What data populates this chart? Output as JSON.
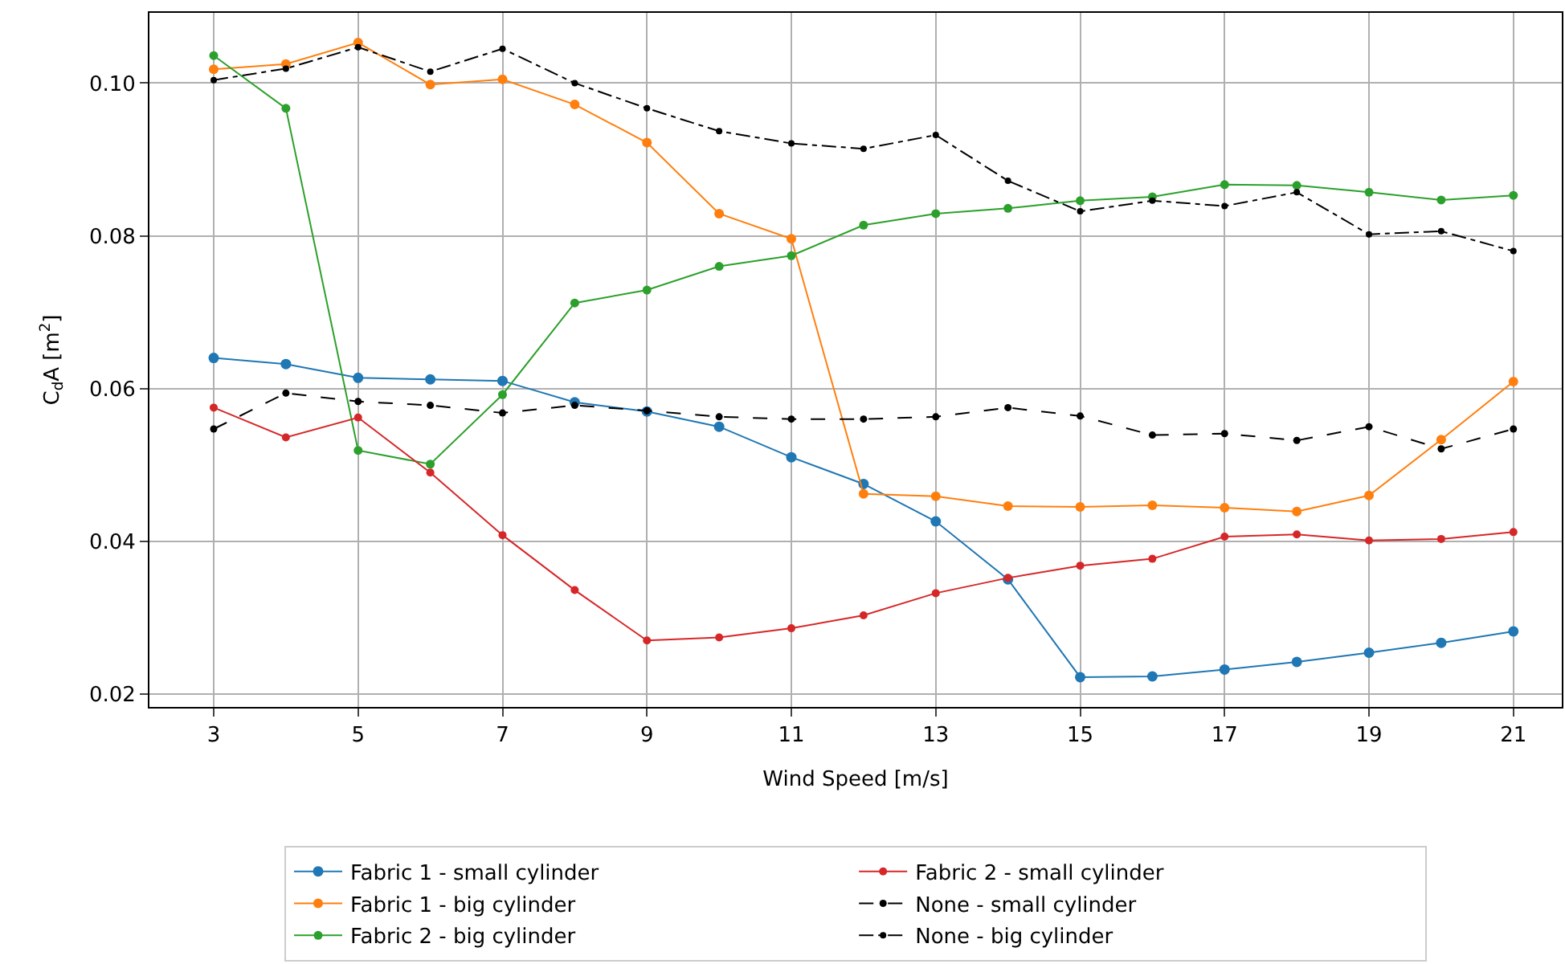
{
  "chart_data": {
    "type": "line",
    "xlabel": "Wind Speed [m/s]",
    "ylabel": "C$_{d}$A [m$^{2}$]",
    "x": [
      3,
      4,
      5,
      6,
      7,
      8,
      9,
      10,
      11,
      12,
      13,
      14,
      15,
      16,
      17,
      18,
      19,
      20,
      21
    ],
    "xlim": [
      2.11,
      21.67
    ],
    "xticks": [
      3,
      5,
      7,
      9,
      11,
      13,
      15,
      17,
      19,
      21
    ],
    "ylim": [
      0.0183,
      0.1092
    ],
    "yticks": [
      {
        "value": 0.02,
        "label": "0.02"
      },
      {
        "value": 0.04,
        "label": "0.04"
      },
      {
        "value": 0.06,
        "label": "0.06"
      },
      {
        "value": 0.08,
        "label": "0.08"
      },
      {
        "value": 0.1,
        "label": "0.10"
      }
    ],
    "grid": true,
    "legend": "bottom",
    "marker": "circle",
    "series": [
      {
        "name": "Fabric 1 - small cylinder",
        "color": "#1f77b4",
        "line_style": "solid",
        "values": [
          0.064,
          0.0632,
          0.0614,
          0.0612,
          0.061,
          0.0582,
          0.057,
          0.055,
          0.051,
          0.0475,
          0.0426,
          0.035,
          0.0222,
          0.0223,
          0.0232,
          0.0242,
          0.0254,
          0.0267,
          0.0282
        ]
      },
      {
        "name": "Fabric 1 - big cylinder",
        "color": "#ff7f0e",
        "line_style": "solid",
        "values": [
          0.1018,
          0.1025,
          0.1053,
          0.0998,
          0.1005,
          0.0972,
          0.0922,
          0.0829,
          0.0796,
          0.0462,
          0.0459,
          0.0446,
          0.0445,
          0.0447,
          0.0444,
          0.0439,
          0.046,
          0.0533,
          0.0609
        ]
      },
      {
        "name": "Fabric 2 - big cylinder",
        "color": "#2ca02c",
        "line_style": "solid",
        "values": [
          0.1036,
          0.0967,
          0.0519,
          0.0501,
          0.0592,
          0.0712,
          0.0729,
          0.076,
          0.0774,
          0.0814,
          0.0829,
          0.0836,
          0.0846,
          0.0851,
          0.0867,
          0.0866,
          0.0857,
          0.0847,
          0.0853
        ]
      },
      {
        "name": "Fabric 2 - small cylinder",
        "color": "#d62728",
        "line_style": "solid",
        "values": [
          0.0575,
          0.0536,
          0.0562,
          0.049,
          0.0408,
          0.0336,
          0.027,
          0.0274,
          0.0286,
          0.0303,
          0.0332,
          0.0352,
          0.0368,
          0.0377,
          0.0406,
          0.0409,
          0.0401,
          0.0403,
          0.0412
        ]
      },
      {
        "name": "None - small cylinder",
        "color": "#000000",
        "line_style": "dashed",
        "values": [
          0.0547,
          0.0594,
          0.0583,
          0.0578,
          0.0568,
          0.0578,
          0.0571,
          0.0563,
          0.056,
          0.056,
          0.0563,
          0.0575,
          0.0564,
          0.0539,
          0.0541,
          0.0532,
          0.055,
          0.0521,
          0.0547
        ]
      },
      {
        "name": "None - big cylinder",
        "color": "#000000",
        "line_style": "dashdot",
        "values": [
          0.1004,
          0.1019,
          0.1047,
          0.1015,
          0.1045,
          0.1,
          0.0967,
          0.0937,
          0.0921,
          0.0914,
          0.0932,
          0.0872,
          0.0832,
          0.0846,
          0.0839,
          0.0857,
          0.0802,
          0.0806,
          0.078
        ]
      }
    ]
  }
}
